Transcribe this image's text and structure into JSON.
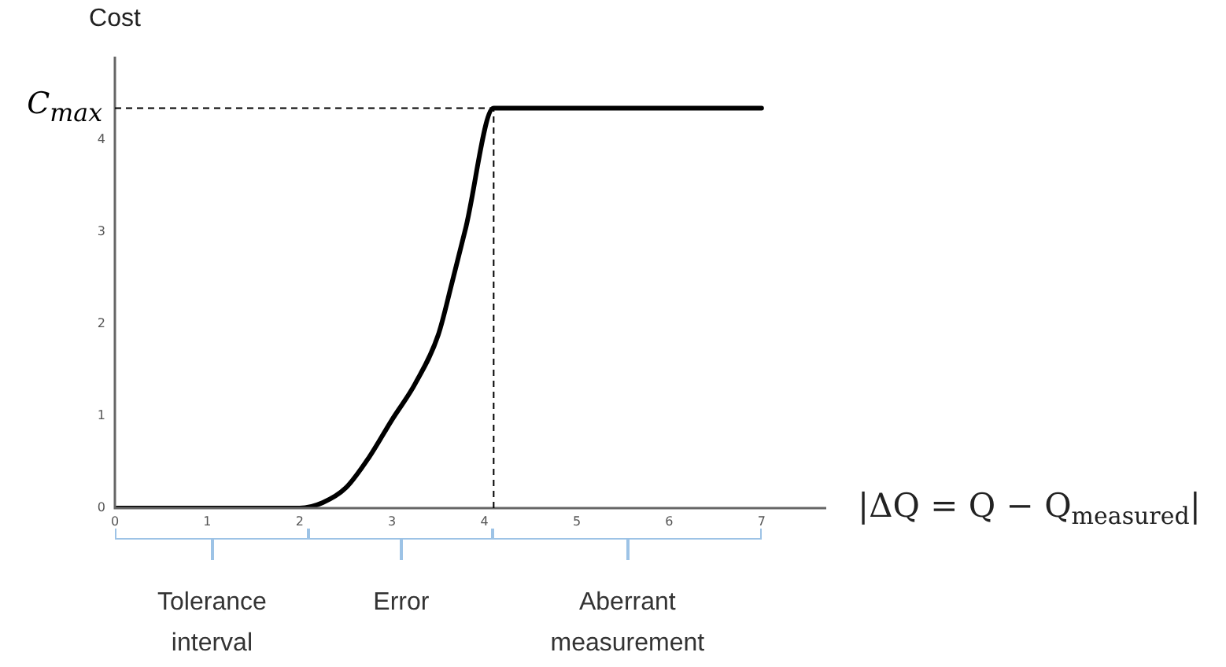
{
  "chart_data": {
    "type": "line",
    "xlabel": "|ΔQ = Q − Q$_{measured}$|",
    "ylabel": "Cost",
    "x": [
      0,
      1,
      2,
      2.25,
      2.5,
      2.75,
      3,
      3.25,
      3.5,
      3.65,
      3.8,
      4.1,
      5,
      6,
      7
    ],
    "series": [
      {
        "color": "#000000",
        "values": [
          0,
          0,
          0,
          0.06,
          0.22,
          0.55,
          0.96,
          1.35,
          1.88,
          2.45,
          3.05,
          4.34,
          4.34,
          4.34,
          4.34
        ]
      }
    ],
    "xlim": [
      0,
      7.7
    ],
    "ylim": [
      0,
      4.9
    ],
    "xticks": [
      0,
      1,
      2,
      3,
      4,
      5,
      6,
      7
    ],
    "yticks": [
      0,
      1,
      2,
      3,
      4
    ],
    "ref_lines": [
      {
        "axis": "y",
        "value": 4.34,
        "label": "C$_{max}$",
        "color": "#000000",
        "line_style": "dashed"
      },
      {
        "axis": "x",
        "value": 4.1,
        "label": null,
        "color": "#000000",
        "line_style": "dashed"
      }
    ],
    "annotations": [
      "Tolerance interval",
      "Error",
      "Aberrant measurement"
    ],
    "grid": false,
    "legend": false,
    "marker": "none",
    "line_style": "solid"
  }
}
